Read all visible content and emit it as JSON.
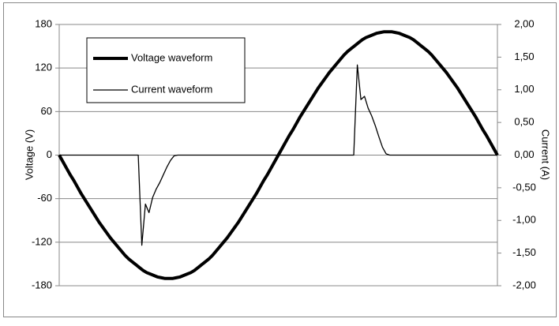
{
  "chart_data": {
    "type": "line",
    "y_label": "Voltage (V)",
    "y2_label": "Current (A)",
    "ylim": [
      -180,
      180
    ],
    "yticks": [
      -180,
      -120,
      -60,
      0,
      60,
      120,
      180
    ],
    "y2lim": [
      -2,
      2
    ],
    "y2ticks": [
      {
        "value": -2,
        "label": "-2,00"
      },
      {
        "value": -1.5,
        "label": "-1,50"
      },
      {
        "value": -1,
        "label": "-1,00"
      },
      {
        "value": -0.5,
        "label": "-0,50"
      },
      {
        "value": 0,
        "label": "0,00"
      },
      {
        "value": 0.5,
        "label": "0,50"
      },
      {
        "value": 1,
        "label": "1,00"
      },
      {
        "value": 1.5,
        "label": "1,50"
      },
      {
        "value": 2,
        "label": "2,00"
      }
    ],
    "grid": true,
    "legend": "upper left",
    "series": [
      {
        "name": "Voltage waveform",
        "color": "#000000",
        "values": [
          0,
          -9,
          -18,
          -27,
          -35,
          -44,
          -53,
          -61,
          -69,
          -77,
          -85,
          -93,
          -100,
          -107,
          -114,
          -120,
          -126,
          -132,
          -138,
          -143,
          -147,
          -151,
          -155,
          -159,
          -162,
          -164,
          -166,
          -168,
          -169,
          -170,
          -170,
          -170,
          -169,
          -168,
          -166,
          -164,
          -162,
          -159,
          -155,
          -151,
          -147,
          -143,
          -138,
          -132,
          -126,
          -120,
          -114,
          -107,
          -100,
          -93,
          -85,
          -77,
          -69,
          -61,
          -53,
          -44,
          -35,
          -27,
          -18,
          -9,
          0,
          9,
          18,
          27,
          35,
          44,
          53,
          61,
          69,
          77,
          85,
          93,
          100,
          107,
          114,
          120,
          126,
          132,
          138,
          143,
          147,
          151,
          155,
          159,
          162,
          164,
          166,
          168,
          169,
          170,
          170,
          170,
          169,
          168,
          166,
          164,
          162,
          159,
          155,
          151,
          147,
          143,
          138,
          132,
          126,
          120,
          114,
          107,
          100,
          93,
          85,
          77,
          69,
          61,
          53,
          44,
          35,
          27,
          18,
          9,
          0
        ]
      },
      {
        "name": "Current waveform",
        "color": "#000000",
        "axis": "y2",
        "values": [
          0,
          0,
          0,
          0,
          0,
          0,
          0,
          0,
          0,
          0,
          0,
          0,
          0,
          0,
          0,
          0,
          0,
          0,
          0,
          0,
          0,
          0,
          0,
          -1.38,
          -0.75,
          -0.88,
          -0.65,
          -0.52,
          -0.42,
          -0.3,
          -0.18,
          -0.08,
          -0.01,
          0,
          0,
          0,
          0,
          0,
          0,
          0,
          0,
          0,
          0,
          0,
          0,
          0,
          0,
          0,
          0,
          0,
          0,
          0,
          0,
          0,
          0,
          0,
          0,
          0,
          0,
          0,
          0,
          0,
          0,
          0,
          0,
          0,
          0,
          0,
          0,
          0,
          0,
          0,
          0,
          0,
          0,
          0,
          0,
          0,
          0,
          0,
          0,
          0,
          0,
          1.38,
          0.85,
          0.9,
          0.72,
          0.6,
          0.45,
          0.28,
          0.12,
          0.02,
          0,
          0,
          0,
          0,
          0,
          0,
          0,
          0,
          0,
          0,
          0,
          0,
          0,
          0,
          0,
          0,
          0,
          0,
          0,
          0,
          0,
          0,
          0,
          0,
          0,
          0,
          0,
          0,
          0,
          0,
          0
        ]
      }
    ]
  }
}
